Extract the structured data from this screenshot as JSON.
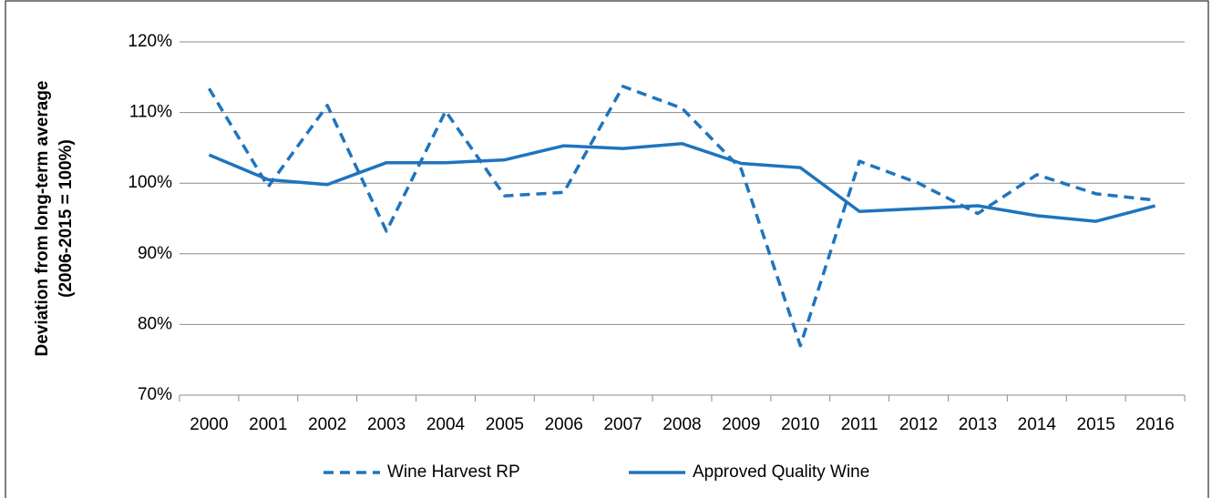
{
  "chart_data": {
    "type": "line",
    "y_label": "Deviation from long-term average (2006-2015 = 100%)",
    "categories": [
      "2000",
      "2001",
      "2002",
      "2003",
      "2004",
      "2005",
      "2006",
      "2007",
      "2008",
      "2009",
      "2010",
      "2011",
      "2012",
      "2013",
      "2014",
      "2015",
      "2016"
    ],
    "series": [
      {
        "name": "Wine Harvest RP",
        "color": "#1f74bd",
        "dashed": true,
        "values": [
          113.4,
          99.5,
          111,
          93.2,
          110.2,
          98.2,
          98.7,
          113.7,
          110.6,
          102,
          77,
          103.1,
          100,
          95.7,
          101.2,
          98.5,
          97.6
        ]
      },
      {
        "name": "Approved Quality Wine",
        "color": "#1f74bd",
        "dashed": false,
        "values": [
          104,
          100.5,
          99.8,
          102.9,
          102.9,
          103.3,
          105.3,
          104.9,
          105.6,
          102.8,
          102.2,
          96,
          96.4,
          96.8,
          95.4,
          94.6,
          96.8
        ]
      }
    ],
    "ylim": [
      70,
      120
    ],
    "yticks": [
      {
        "value": 70,
        "label": "70%"
      },
      {
        "value": 80,
        "label": "80%"
      },
      {
        "value": 90,
        "label": "90%"
      },
      {
        "value": 100,
        "label": "100%"
      },
      {
        "value": 110,
        "label": "110%"
      },
      {
        "value": 120,
        "label": "120%"
      }
    ],
    "grid": true,
    "legend": "bottom"
  }
}
